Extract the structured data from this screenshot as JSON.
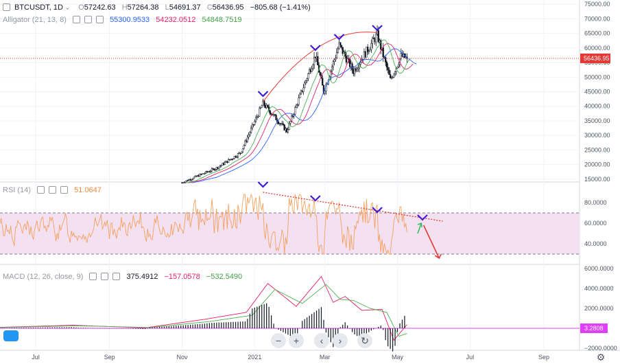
{
  "header": {
    "symbol": "BTCUSDT, 1D",
    "open_label": "O",
    "open": "57242.63",
    "high_label": "H",
    "high": "57264.38",
    "low_label": "L",
    "low": "54691.37",
    "close_label": "C",
    "close": "56436.95",
    "change": "−805.68 (−1.41%)"
  },
  "alligator": {
    "label": "Alligator (21, 13, 8)",
    "jaw": "55300.9533",
    "teeth": "54232.0512",
    "lips": "54848.7519"
  },
  "rsi": {
    "label": "RSI (14)",
    "value": "51.0647"
  },
  "macd": {
    "label": "MACD (12, 26, close, 9)",
    "macd": "375.4912",
    "hist": "−157.0578",
    "signal": "−532.5490"
  },
  "price_tag": "56436.95",
  "macd_tag": "3.2808",
  "colors": {
    "up": "#131722",
    "down": "#131722",
    "jaw": "#2962ff",
    "teeth": "#e91e63",
    "lips": "#4caf50",
    "rsi": "#f5a15f",
    "rsi_band": "#f3e0f1",
    "macd_line": "#e91e63",
    "signal_line": "#4caf50",
    "hist": "#131722",
    "arrow_marker": "#3f1bd6",
    "arc": "#e53935",
    "price_tag": "#e53935",
    "macd_tag": "#e040fb"
  },
  "icons": {
    "zoom_out": "minus-icon",
    "zoom_in": "plus-icon",
    "left": "chevron-left-icon",
    "right": "chevron-right-icon",
    "reset": "reset-icon",
    "settings": "gear-icon",
    "logo": "tradingview-logo-icon"
  },
  "chart_data": {
    "type": "candlestick",
    "price_axis_ticks": [
      "75000.00",
      "70000.00",
      "65000.00",
      "60000.00",
      "55000.00",
      "50000.00",
      "45000.00",
      "40000.00",
      "35000.00",
      "30000.00",
      "25000.00",
      "20000.00",
      "15000.00"
    ],
    "rsi_axis_ticks": [
      "80.0000",
      "60.0000",
      "40.0000"
    ],
    "macd_axis_ticks": [
      "6000.0000",
      "4000.0000",
      "2000.0000",
      "−2000.0000"
    ],
    "time_labels": [
      "Jul",
      "Sep",
      "Nov",
      "2021",
      "Mar",
      "May",
      "Jul",
      "Sep"
    ],
    "price_ylim": [
      14000,
      76000
    ],
    "key_prices": [
      {
        "date": "2020-11-01",
        "close": 13800
      },
      {
        "date": "2020-12-01",
        "close": 19000
      },
      {
        "date": "2020-12-20",
        "close": 24000
      },
      {
        "date": "2021-01-08",
        "close": 41000
      },
      {
        "date": "2021-01-28",
        "close": 31500
      },
      {
        "date": "2021-02-21",
        "close": 57500
      },
      {
        "date": "2021-02-28",
        "close": 45000
      },
      {
        "date": "2021-03-13",
        "close": 61000
      },
      {
        "date": "2021-03-25",
        "close": 52000
      },
      {
        "date": "2021-04-14",
        "close": 64500
      },
      {
        "date": "2021-04-25",
        "close": 49000
      },
      {
        "date": "2021-05-04",
        "close": 57200
      },
      {
        "date": "2021-05-09",
        "close": 56436.95
      }
    ],
    "rsi_levels": [
      70,
      30
    ],
    "rsi_last": 51.0647,
    "macd_last": {
      "macd": 375.4912,
      "signal": -532.549,
      "hist": -157.0578
    }
  }
}
